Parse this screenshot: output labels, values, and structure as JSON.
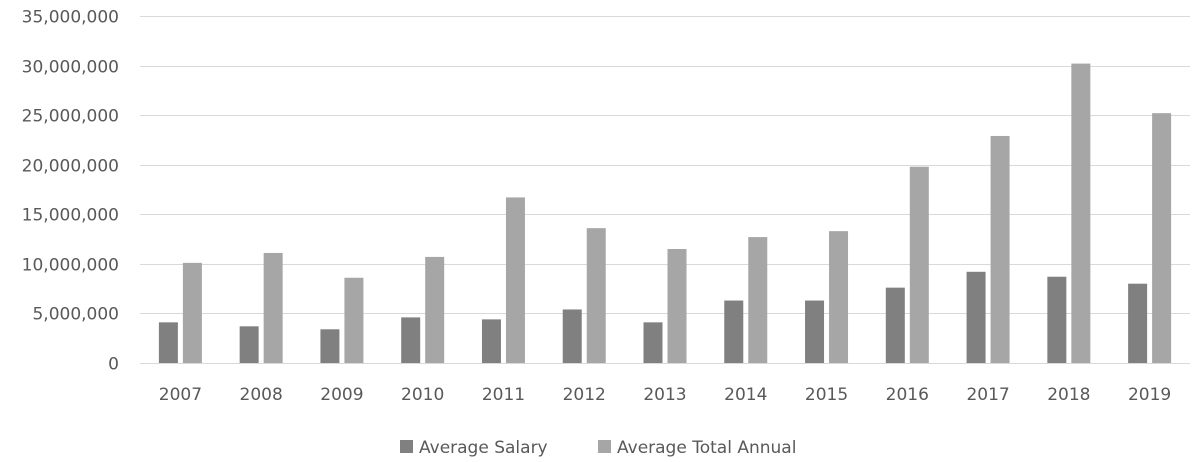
{
  "chart_data": {
    "type": "bar",
    "title": "",
    "xlabel": "",
    "ylabel": "",
    "ylim": [
      0,
      35000000
    ],
    "yticks": [
      0,
      5000000,
      10000000,
      15000000,
      20000000,
      25000000,
      30000000,
      35000000
    ],
    "ytick_labels": [
      "0",
      "5,000,000",
      "10,000,000",
      "15,000,000",
      "20,000,000",
      "25,000,000",
      "30,000,000",
      "35,000,000"
    ],
    "categories": [
      "2007",
      "2008",
      "2009",
      "2010",
      "2011",
      "2012",
      "2013",
      "2014",
      "2015",
      "2016",
      "2017",
      "2018",
      "2019"
    ],
    "series": [
      {
        "name": "Average Salary",
        "color": "#808080",
        "values": [
          4100000,
          3700000,
          3400000,
          4600000,
          4400000,
          5400000,
          4100000,
          6300000,
          6300000,
          7600000,
          9200000,
          8700000,
          8000000
        ]
      },
      {
        "name": "Average Total Annual",
        "color": "#a6a6a6",
        "values": [
          10100000,
          11100000,
          8600000,
          10700000,
          16700000,
          13600000,
          11500000,
          12700000,
          13300000,
          19800000,
          22900000,
          30200000,
          25200000
        ]
      }
    ],
    "grid": true,
    "legend_position": "bottom"
  }
}
